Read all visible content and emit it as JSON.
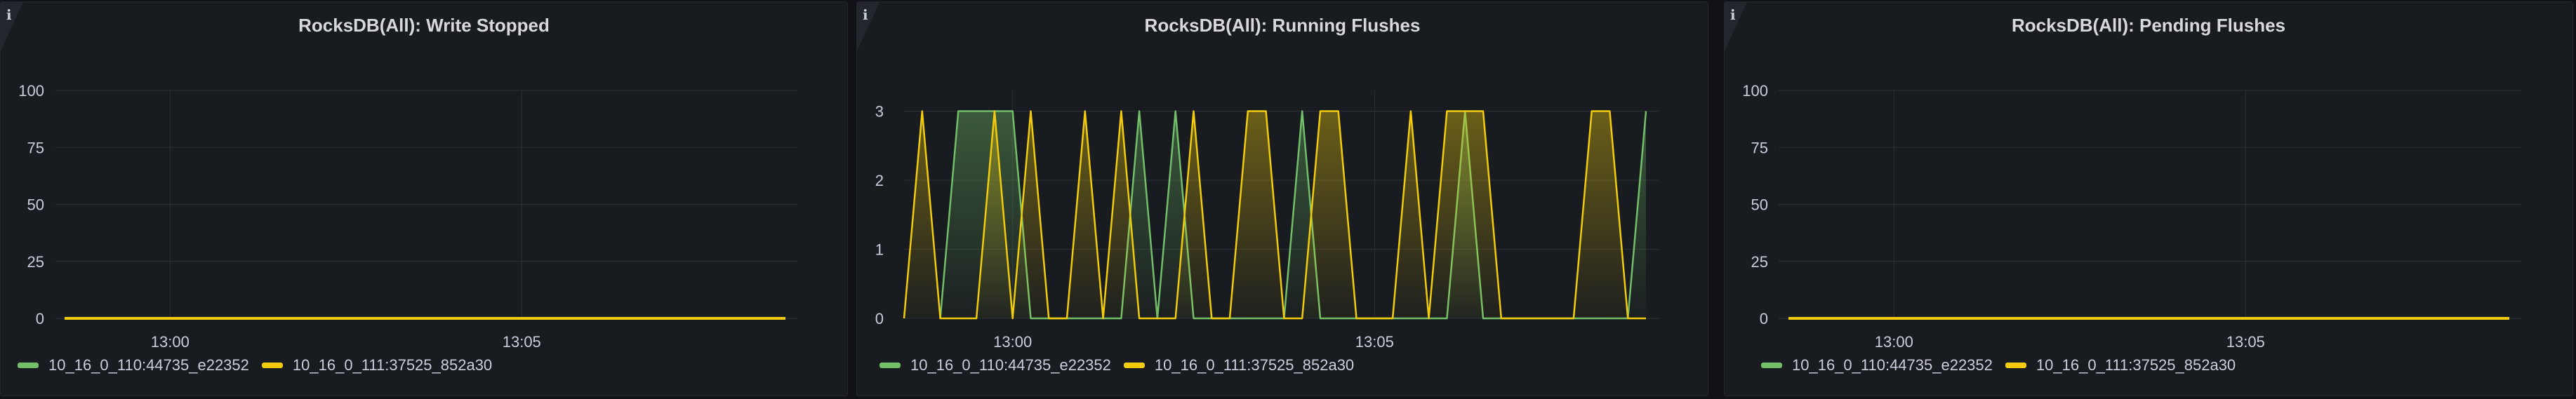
{
  "colors": {
    "series_a": "#73bf69",
    "series_b": "#f2cc0c",
    "grid": "#2c2f35",
    "tick_text": "#ccccdc"
  },
  "panels": [
    {
      "title": "RocksDB(All): Write Stopped",
      "info_icon": "i",
      "legend": [
        "10_16_0_110:44735_e22352",
        "10_16_0_111:37525_852a30"
      ]
    },
    {
      "title": "RocksDB(All): Running Flushes",
      "info_icon": "i",
      "legend": [
        "10_16_0_110:44735_e22352",
        "10_16_0_111:37525_852a30"
      ]
    },
    {
      "title": "RocksDB(All): Pending Flushes",
      "info_icon": "i",
      "legend": [
        "10_16_0_110:44735_e22352",
        "10_16_0_111:37525_852a30"
      ]
    }
  ],
  "chart_data": [
    {
      "type": "line",
      "title": "RocksDB(All): Write Stopped",
      "x_range": [
        "12:58:30",
        "13:08:45"
      ],
      "x_ticks": [
        "13:00",
        "13:05"
      ],
      "y_ticks": [
        0,
        25,
        50,
        75,
        100
      ],
      "ylim": [
        0,
        100
      ],
      "grid": true,
      "legend_position": "bottom",
      "series": [
        {
          "name": "10_16_0_110:44735_e22352",
          "color": "#73bf69",
          "fill": false,
          "values": [
            [
              "12:58:30",
              0
            ],
            [
              "13:08:45",
              0
            ]
          ]
        },
        {
          "name": "10_16_0_111:37525_852a30",
          "color": "#f2cc0c",
          "fill": false,
          "values": [
            [
              "12:58:30",
              0
            ],
            [
              "13:08:45",
              0
            ]
          ]
        }
      ]
    },
    {
      "type": "area",
      "title": "RocksDB(All): Running Flushes",
      "x_start": "12:58:30",
      "x_step_seconds": 15,
      "x_range": [
        "12:58:30",
        "13:08:45"
      ],
      "x_ticks": [
        "13:00",
        "13:05"
      ],
      "y_ticks": [
        0,
        1,
        2,
        3
      ],
      "ylim": [
        0,
        3.3
      ],
      "grid": true,
      "legend_position": "bottom",
      "series": [
        {
          "name": "10_16_0_110:44735_e22352",
          "color": "#73bf69",
          "fill": true,
          "values": [
            null,
            null,
            0,
            3,
            3,
            3,
            3,
            0,
            0,
            0,
            0,
            0,
            0,
            3,
            0,
            3,
            0,
            0,
            0,
            0,
            0,
            0,
            3,
            0,
            0,
            0,
            0,
            0,
            0,
            0,
            0,
            3,
            0,
            0,
            0,
            0,
            0,
            0,
            0,
            0,
            0,
            3
          ]
        },
        {
          "name": "10_16_0_111:37525_852a30",
          "color": "#f2cc0c",
          "fill": true,
          "values": [
            0,
            3,
            0,
            0,
            0,
            3,
            0,
            3,
            0,
            0,
            3,
            0,
            3,
            0,
            0,
            0,
            3,
            0,
            0,
            3,
            3,
            0,
            0,
            3,
            3,
            0,
            0,
            0,
            3,
            0,
            3,
            3,
            3,
            0,
            0,
            0,
            0,
            0,
            3,
            3,
            0,
            0
          ]
        }
      ]
    },
    {
      "type": "line",
      "title": "RocksDB(All): Pending Flushes",
      "x_range": [
        "12:58:30",
        "13:08:45"
      ],
      "x_ticks": [
        "13:00",
        "13:05"
      ],
      "y_ticks": [
        0,
        25,
        50,
        75,
        100
      ],
      "ylim": [
        0,
        100
      ],
      "grid": true,
      "legend_position": "bottom",
      "series": [
        {
          "name": "10_16_0_110:44735_e22352",
          "color": "#73bf69",
          "fill": false,
          "values": [
            [
              "12:58:30",
              0
            ],
            [
              "13:08:45",
              0
            ]
          ]
        },
        {
          "name": "10_16_0_111:37525_852a30",
          "color": "#f2cc0c",
          "fill": false,
          "values": [
            [
              "12:58:30",
              0
            ],
            [
              "13:08:45",
              0
            ]
          ]
        }
      ]
    }
  ]
}
